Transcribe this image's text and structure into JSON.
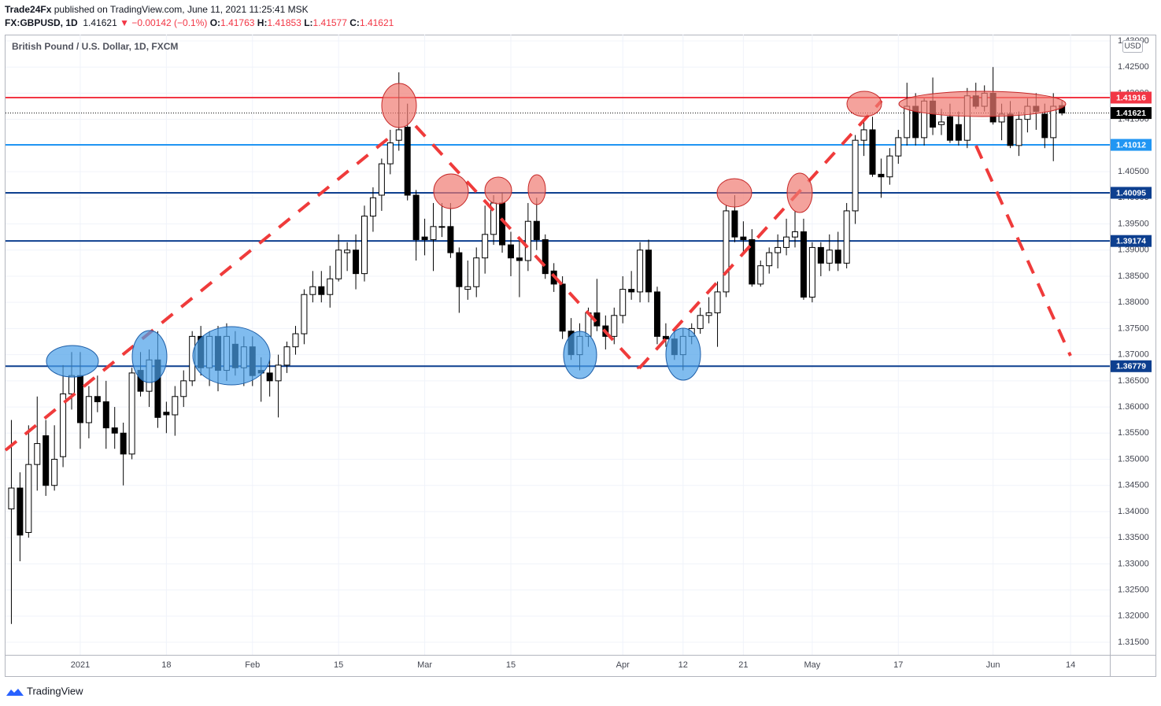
{
  "header": {
    "publisher": "Trade24Fx",
    "published": "published on TradingView.com, June 11, 2021 11:25:41 MSK",
    "symbol": "FX:GBPUSD, 1D",
    "last": "1.41621",
    "change": "▼ −0.00142 (−0.1%)",
    "o_label": "O:",
    "o": "1.41763",
    "h_label": "H:",
    "h": "1.41853",
    "l_label": "L:",
    "l": "1.41577",
    "c_label": "C:",
    "c": "1.41621"
  },
  "chart_data": {
    "type": "candlestick",
    "title": "British Pound / U.S. Dollar, 1D, FXCM",
    "currency": "USD",
    "up_color": "#ffffff",
    "down_color": "#000000",
    "border_color": "#000000",
    "open": [
      1.3405,
      1.3445,
      1.336,
      1.349,
      1.3545,
      1.345,
      1.3505,
      1.3625,
      1.366,
      1.357,
      1.362,
      1.361,
      1.356,
      1.355,
      1.351,
      1.367,
      1.363,
      1.369,
      1.359,
      1.3585,
      1.362,
      1.365,
      1.3735,
      1.3675,
      1.3735,
      1.367,
      1.372,
      1.3675,
      1.3715,
      1.367,
      1.3665,
      1.365,
      1.368,
      1.3715,
      1.374,
      1.3815,
      1.383,
      1.3815,
      1.3845,
      1.3895,
      1.39,
      1.3855,
      1.3965,
      1.4005,
      1.4065,
      1.411,
      1.4135,
      1.4005,
      1.3925,
      1.392,
      1.3945,
      1.3945,
      1.3895,
      1.3825,
      1.383,
      1.3885,
      1.393,
      1.399,
      1.391,
      1.3885,
      1.388,
      1.3955,
      1.392,
      1.386,
      1.3835,
      1.3745,
      1.37,
      1.3735,
      1.378,
      1.3755,
      1.3735,
      1.3775,
      1.3825,
      1.382,
      1.39,
      1.382,
      1.3735,
      1.373,
      1.37,
      1.3735,
      1.375,
      1.3775,
      1.378,
      1.382,
      1.3975,
      1.3925,
      1.392,
      1.3835,
      1.387,
      1.3895,
      1.3905,
      1.3925,
      1.3935,
      1.381,
      1.3905,
      1.3875,
      1.39,
      1.3875,
      1.3975,
      1.411,
      1.413,
      1.4045,
      1.404,
      1.408,
      1.4115,
      1.4175,
      1.4115,
      1.4185,
      1.414,
      1.4155,
      1.414,
      1.411,
      1.4195,
      1.4175,
      1.42,
      1.4145,
      1.416,
      1.41,
      1.415,
      1.4175,
      1.416,
      1.4115,
      1.41763
    ],
    "high": [
      1.3575,
      1.3475,
      1.3565,
      1.362,
      1.3575,
      1.3565,
      1.368,
      1.3705,
      1.3705,
      1.364,
      1.366,
      1.365,
      1.36,
      1.357,
      1.3675,
      1.3705,
      1.371,
      1.3745,
      1.361,
      1.364,
      1.367,
      1.3745,
      1.3755,
      1.3745,
      1.3755,
      1.376,
      1.3745,
      1.3735,
      1.3735,
      1.3695,
      1.369,
      1.37,
      1.3725,
      1.3755,
      1.3825,
      1.386,
      1.386,
      1.387,
      1.393,
      1.3915,
      1.393,
      1.3985,
      1.402,
      1.4075,
      1.413,
      1.424,
      1.418,
      1.4015,
      1.396,
      1.399,
      1.399,
      1.399,
      1.3905,
      1.388,
      1.3905,
      1.3985,
      1.4005,
      1.401,
      1.3935,
      1.392,
      1.399,
      1.4,
      1.393,
      1.3875,
      1.385,
      1.377,
      1.376,
      1.379,
      1.3845,
      1.3775,
      1.379,
      1.385,
      1.386,
      1.3915,
      1.392,
      1.383,
      1.376,
      1.375,
      1.375,
      1.376,
      1.379,
      1.381,
      1.384,
      1.3985,
      1.4005,
      1.3955,
      1.394,
      1.388,
      1.3905,
      1.393,
      1.396,
      1.3975,
      1.396,
      1.3915,
      1.3915,
      1.393,
      1.3935,
      1.399,
      1.412,
      1.4145,
      1.4155,
      1.4075,
      1.4095,
      1.413,
      1.422,
      1.42,
      1.419,
      1.423,
      1.417,
      1.418,
      1.4165,
      1.421,
      1.422,
      1.4215,
      1.425,
      1.418,
      1.4185,
      1.4165,
      1.419,
      1.42,
      1.418,
      1.42,
      1.41853
    ],
    "low": [
      1.3185,
      1.3305,
      1.335,
      1.344,
      1.343,
      1.344,
      1.3485,
      1.3595,
      1.352,
      1.354,
      1.359,
      1.352,
      1.352,
      1.345,
      1.35,
      1.362,
      1.36,
      1.356,
      1.355,
      1.3545,
      1.36,
      1.364,
      1.366,
      1.364,
      1.363,
      1.365,
      1.366,
      1.364,
      1.364,
      1.361,
      1.362,
      1.358,
      1.3665,
      1.37,
      1.372,
      1.38,
      1.38,
      1.379,
      1.384,
      1.386,
      1.3825,
      1.384,
      1.3935,
      1.3975,
      1.4045,
      1.409,
      1.3995,
      1.388,
      1.389,
      1.386,
      1.3925,
      1.3885,
      1.378,
      1.3805,
      1.381,
      1.3855,
      1.391,
      1.3895,
      1.385,
      1.381,
      1.386,
      1.39,
      1.3845,
      1.382,
      1.373,
      1.369,
      1.367,
      1.3715,
      1.3745,
      1.371,
      1.372,
      1.376,
      1.3805,
      1.38,
      1.38,
      1.372,
      1.3715,
      1.369,
      1.367,
      1.372,
      1.374,
      1.376,
      1.3715,
      1.381,
      1.3915,
      1.3895,
      1.383,
      1.383,
      1.3855,
      1.3865,
      1.389,
      1.3905,
      1.3805,
      1.38,
      1.385,
      1.386,
      1.386,
      1.3865,
      1.395,
      1.408,
      1.404,
      1.4,
      1.4025,
      1.4065,
      1.41,
      1.41,
      1.41,
      1.412,
      1.412,
      1.4105,
      1.41,
      1.4095,
      1.417,
      1.4165,
      1.414,
      1.411,
      1.4095,
      1.408,
      1.4125,
      1.413,
      1.4095,
      1.407,
      1.41577
    ],
    "close": [
      1.3445,
      1.3355,
      1.349,
      1.353,
      1.345,
      1.35,
      1.3625,
      1.366,
      1.357,
      1.362,
      1.361,
      1.356,
      1.355,
      1.351,
      1.3665,
      1.363,
      1.369,
      1.358,
      1.3585,
      1.362,
      1.365,
      1.3735,
      1.3675,
      1.3735,
      1.367,
      1.3735,
      1.3675,
      1.3715,
      1.366,
      1.3665,
      1.365,
      1.368,
      1.3715,
      1.374,
      1.3815,
      1.383,
      1.3815,
      1.3845,
      1.39,
      1.39,
      1.3855,
      1.3965,
      1.4,
      1.4065,
      1.4105,
      1.413,
      1.4005,
      1.392,
      1.392,
      1.3945,
      1.3945,
      1.3895,
      1.383,
      1.383,
      1.3885,
      1.393,
      1.399,
      1.391,
      1.3885,
      1.388,
      1.3955,
      1.392,
      1.3855,
      1.3835,
      1.3745,
      1.37,
      1.3735,
      1.378,
      1.3755,
      1.3735,
      1.3775,
      1.3825,
      1.382,
      1.39,
      1.382,
      1.3735,
      1.373,
      1.37,
      1.3735,
      1.375,
      1.3775,
      1.378,
      1.382,
      1.3975,
      1.3925,
      1.392,
      1.3835,
      1.387,
      1.3895,
      1.3905,
      1.3925,
      1.3935,
      1.381,
      1.3905,
      1.3875,
      1.39,
      1.3875,
      1.3975,
      1.411,
      1.413,
      1.4045,
      1.404,
      1.408,
      1.4115,
      1.4175,
      1.4115,
      1.4185,
      1.4135,
      1.4145,
      1.411,
      1.411,
      1.4195,
      1.4175,
      1.42,
      1.4145,
      1.416,
      1.41,
      1.415,
      1.4175,
      1.4165,
      1.4115,
      1.4175,
      1.41621
    ],
    "xlim": [
      -0.68,
      127.56
    ],
    "xticks": [
      {
        "value": 8,
        "label": "2021"
      },
      {
        "value": 18,
        "label": "18"
      },
      {
        "value": 28,
        "label": "Feb"
      },
      {
        "value": 38,
        "label": "15"
      },
      {
        "value": 48,
        "label": "Mar"
      },
      {
        "value": 58,
        "label": "15"
      },
      {
        "value": 71,
        "label": "Apr"
      },
      {
        "value": 78,
        "label": "12"
      },
      {
        "value": 85,
        "label": "21"
      },
      {
        "value": 93,
        "label": "May"
      },
      {
        "value": 103,
        "label": "17"
      },
      {
        "value": 114,
        "label": "Jun"
      },
      {
        "value": 123,
        "label": "14"
      }
    ],
    "ylim": [
      1.3126,
      1.4312
    ],
    "yticks": [
      {
        "value": 1.315,
        "label": "1.31500"
      },
      {
        "value": 1.32,
        "label": "1.32000"
      },
      {
        "value": 1.325,
        "label": "1.32500"
      },
      {
        "value": 1.33,
        "label": "1.33000"
      },
      {
        "value": 1.335,
        "label": "1.33500"
      },
      {
        "value": 1.34,
        "label": "1.34000"
      },
      {
        "value": 1.345,
        "label": "1.34500"
      },
      {
        "value": 1.35,
        "label": "1.35000"
      },
      {
        "value": 1.355,
        "label": "1.35500"
      },
      {
        "value": 1.36,
        "label": "1.36000"
      },
      {
        "value": 1.365,
        "label": "1.36500"
      },
      {
        "value": 1.37,
        "label": "1.37000"
      },
      {
        "value": 1.375,
        "label": "1.37500"
      },
      {
        "value": 1.38,
        "label": "1.38000"
      },
      {
        "value": 1.385,
        "label": "1.38500"
      },
      {
        "value": 1.39,
        "label": "1.39000"
      },
      {
        "value": 1.395,
        "label": "1.39500"
      },
      {
        "value": 1.4,
        "label": "1.40000"
      },
      {
        "value": 1.405,
        "label": "1.40500"
      },
      {
        "value": 1.41,
        "label": "1.41000"
      },
      {
        "value": 1.415,
        "label": "1.41500"
      },
      {
        "value": 1.42,
        "label": "1.42000"
      },
      {
        "value": 1.425,
        "label": "1.42500"
      },
      {
        "value": 1.43,
        "label": "1.43000"
      }
    ],
    "grid": true,
    "levels": [
      {
        "value": 1.41916,
        "label": "1.41916",
        "color": "#f23645"
      },
      {
        "value": 1.41012,
        "label": "1.41012",
        "color": "#2196f3"
      },
      {
        "value": 1.40095,
        "label": "1.40095",
        "color": "#0d3f8f"
      },
      {
        "value": 1.39174,
        "label": "1.39174",
        "color": "#0d3f8f"
      },
      {
        "value": 1.36779,
        "label": "1.36779",
        "color": "#0d3f8f"
      }
    ],
    "last_price": {
      "value": 1.41621,
      "label": "1.41621",
      "color": "#000000"
    }
  },
  "footer": {
    "brand": "TradingView"
  }
}
